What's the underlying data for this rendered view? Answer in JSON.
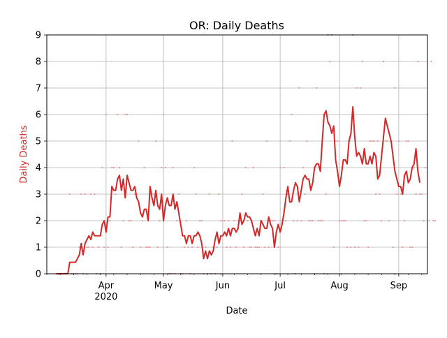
{
  "chart_data": {
    "type": "line",
    "title": "OR: Daily Deaths",
    "xlabel": "Date",
    "ylabel": "Daily Deaths",
    "ylim": [
      0,
      9
    ],
    "xlim": [
      "2020-03-01",
      "2020-09-16"
    ],
    "yticks": [
      "0",
      "1",
      "2",
      "3",
      "4",
      "5",
      "6",
      "7",
      "8",
      "9"
    ],
    "xticks": [
      {
        "date": "2020-04-01",
        "label": "Apr",
        "sublabel": "2020"
      },
      {
        "date": "2020-05-01",
        "label": "May",
        "sublabel": ""
      },
      {
        "date": "2020-06-01",
        "label": "Jun",
        "sublabel": ""
      },
      {
        "date": "2020-07-01",
        "label": "Jul",
        "sublabel": ""
      },
      {
        "date": "2020-08-01",
        "label": "Aug",
        "sublabel": ""
      },
      {
        "date": "2020-09-01",
        "label": "Sep",
        "sublabel": ""
      }
    ],
    "grid": true,
    "series": [
      {
        "color": "#d62728",
        "start_date": "2020-03-06",
        "values": [
          0,
          0,
          0,
          0,
          0,
          0,
          0,
          0.43,
          0.43,
          0.43,
          0.43,
          0.57,
          0.71,
          1.14,
          0.71,
          1.14,
          1.29,
          1.43,
          1.29,
          1.57,
          1.43,
          1.43,
          1.43,
          1.43,
          1.86,
          2.0,
          1.57,
          2.14,
          2.14,
          3.29,
          3.14,
          3.14,
          3.57,
          3.71,
          3.14,
          3.57,
          2.86,
          3.71,
          3.43,
          3.14,
          3.14,
          3.29,
          2.86,
          2.71,
          2.29,
          2.14,
          2.43,
          2.43,
          2.0,
          3.29,
          2.86,
          2.57,
          3.14,
          2.57,
          2.43,
          3.0,
          2.0,
          2.57,
          2.86,
          2.57,
          2.57,
          3.0,
          2.43,
          2.71,
          2.29,
          1.86,
          1.43,
          1.43,
          1.14,
          1.43,
          1.43,
          1.14,
          1.43,
          1.43,
          1.57,
          1.43,
          1.14,
          0.57,
          0.86,
          0.57,
          0.86,
          0.71,
          0.86,
          1.29,
          1.57,
          1.14,
          1.43,
          1.43,
          1.57,
          1.43,
          1.71,
          1.43,
          1.71,
          1.71,
          1.57,
          1.71,
          2.29,
          1.86,
          2.0,
          2.29,
          2.14,
          2.14,
          2.0,
          1.71,
          1.43,
          1.71,
          1.43,
          2.0,
          1.86,
          1.71,
          1.71,
          2.14,
          1.86,
          1.71,
          1.0,
          1.57,
          1.86,
          1.57,
          1.86,
          2.29,
          2.86,
          3.29,
          2.71,
          2.71,
          3.14,
          3.43,
          3.29,
          2.71,
          3.14,
          3.57,
          3.71,
          3.57,
          3.57,
          3.14,
          3.43,
          4.0,
          4.14,
          4.14,
          3.86,
          5.0,
          6.0,
          6.14,
          5.71,
          5.57,
          5.29,
          5.57,
          4.29,
          3.86,
          3.29,
          3.71,
          4.29,
          4.29,
          4.14,
          5.0,
          5.29,
          6.29,
          5.14,
          4.43,
          4.57,
          4.43,
          4.14,
          4.71,
          4.14,
          4.14,
          4.43,
          4.14,
          4.57,
          4.43,
          3.57,
          3.71,
          4.43,
          5.14,
          5.86,
          5.57,
          5.29,
          5.0,
          4.43,
          3.86,
          3.57,
          3.29,
          3.29,
          3.0,
          3.71,
          3.86,
          3.43,
          3.57,
          4.0,
          4.14,
          4.71,
          3.86,
          3.43
        ]
      }
    ],
    "daily_dots": {
      "color": "#e8a0a0",
      "start_date": "2020-03-06",
      "values": [
        0,
        0,
        0,
        0,
        0,
        0,
        0,
        3,
        0,
        0,
        0,
        0,
        1,
        3,
        0,
        3,
        1,
        1,
        3,
        1,
        3,
        0,
        1,
        0,
        4,
        1,
        6,
        1,
        2,
        4,
        4,
        3,
        6,
        4,
        1,
        2,
        6,
        6,
        2,
        2,
        1,
        3,
        3,
        5,
        1,
        2,
        4,
        1,
        1,
        1,
        3,
        3,
        5,
        1,
        2,
        4,
        6,
        4,
        1,
        0,
        0,
        4,
        0,
        2,
        3,
        0,
        0,
        1,
        2,
        1,
        0,
        1,
        4,
        3,
        1,
        2,
        2,
        0,
        1,
        0,
        3,
        0,
        1,
        0,
        1,
        3,
        2,
        2,
        2,
        1,
        2,
        1,
        5,
        2,
        1,
        2,
        2,
        3,
        1,
        4,
        2,
        1,
        1,
        4,
        1,
        1,
        1,
        2,
        3,
        1,
        5,
        1,
        2,
        2,
        2,
        0,
        1,
        4,
        2,
        4,
        2,
        3,
        5,
        6,
        2,
        0,
        2,
        7,
        2,
        4,
        3,
        5,
        2,
        2,
        2,
        0,
        7,
        2,
        2,
        2,
        0,
        3,
        9,
        8,
        9,
        1,
        5,
        5,
        2,
        2,
        2,
        2,
        1,
        5,
        1,
        9,
        1,
        7,
        1,
        7,
        8,
        2,
        2,
        1,
        5,
        5,
        5,
        3,
        5,
        3,
        2,
        8,
        5,
        5,
        2,
        5,
        1,
        7,
        3,
        5,
        3,
        1,
        2,
        5,
        5,
        1,
        1,
        4,
        3,
        8,
        3,
        3,
        2,
        4,
        6,
        2,
        8,
        2,
        2
      ]
    }
  }
}
